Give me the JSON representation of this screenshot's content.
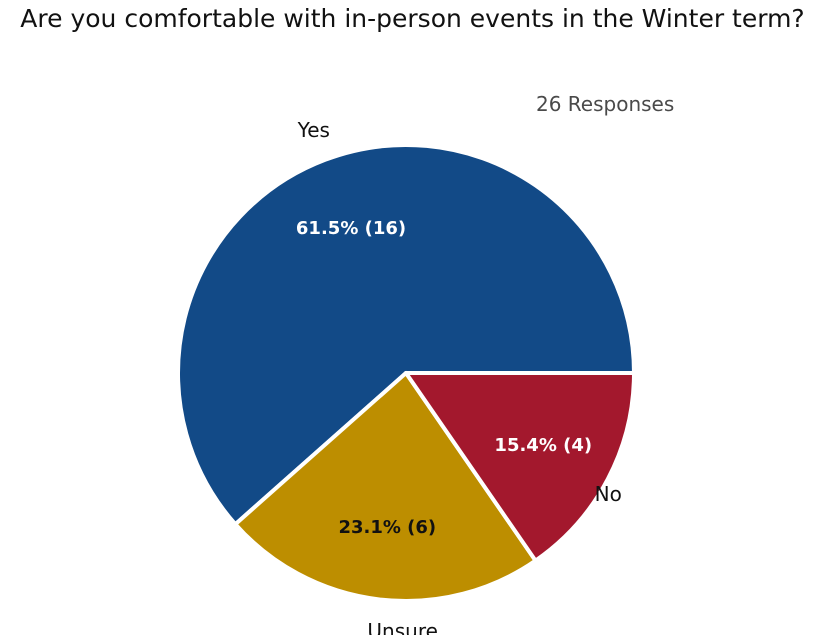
{
  "chart_data": {
    "type": "pie",
    "title": "Are you comfortable with in-person events in the Winter term?",
    "subtitle": "26 Responses",
    "slices": [
      {
        "label": "Yes",
        "value": 16,
        "value_label": "61.5% (16)",
        "color": "#124a87",
        "label_color": "#ffffff"
      },
      {
        "label": "Unsure",
        "value": 6,
        "value_label": "23.1% (6)",
        "color": "#bd8e00",
        "label_color": "#111111"
      },
      {
        "label": "No",
        "value": 4,
        "value_label": "15.4% (4)",
        "color": "#a3182d",
        "label_color": "#ffffff"
      }
    ]
  }
}
